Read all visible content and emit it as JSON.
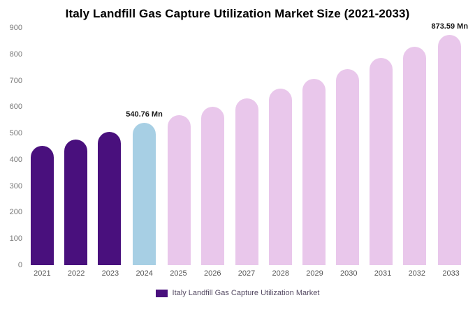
{
  "title": "Italy Landfill Gas Capture Utilization Market Size (2021-2033)",
  "legend": {
    "label": "Italy Landfill Gas Capture Utilization Market",
    "swatch_color": "#49107d"
  },
  "colors": {
    "historical": "#49107d",
    "highlight": "#a7cfe4",
    "forecast": "#e9c7eb"
  },
  "chart_data": {
    "type": "bar",
    "title": "Italy Landfill Gas Capture Utilization Market Size (2021-2033)",
    "xlabel": "",
    "ylabel": "",
    "ylim": [
      0,
      900
    ],
    "yticks": [
      0,
      100,
      200,
      300,
      400,
      500,
      600,
      700,
      800,
      900
    ],
    "grid": false,
    "legend_position": "bottom",
    "categories": [
      "2021",
      "2022",
      "2023",
      "2024",
      "2025",
      "2026",
      "2027",
      "2028",
      "2029",
      "2030",
      "2031",
      "2032",
      "2033"
    ],
    "values": [
      452,
      477,
      505,
      540.76,
      570,
      601,
      634,
      669,
      706,
      744,
      785,
      828,
      873.59
    ],
    "bar_colors": [
      "#49107d",
      "#49107d",
      "#49107d",
      "#a7cfe4",
      "#e9c7eb",
      "#e9c7eb",
      "#e9c7eb",
      "#e9c7eb",
      "#e9c7eb",
      "#e9c7eb",
      "#e9c7eb",
      "#e9c7eb",
      "#e9c7eb"
    ],
    "annotations": [
      {
        "index": 3,
        "text": "540.76 Mn"
      },
      {
        "index": 12,
        "text": "873.59 Mn"
      }
    ]
  }
}
